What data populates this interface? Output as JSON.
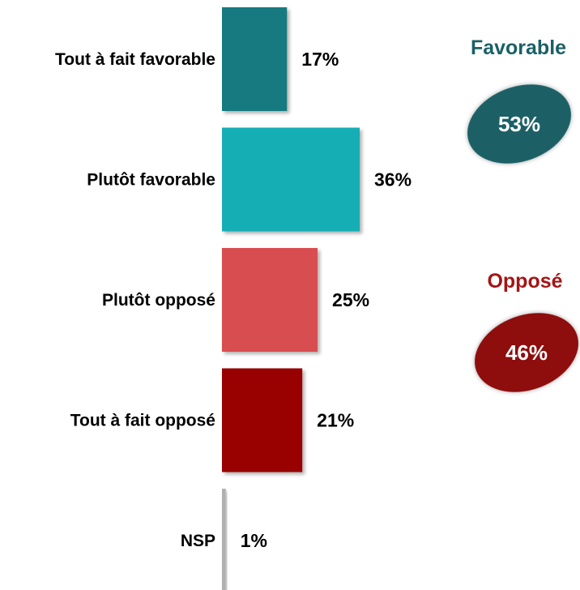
{
  "chart_data": {
    "type": "bar",
    "orientation": "horizontal",
    "categories": [
      "Tout à fait favorable",
      "Plutôt favorable",
      "Plutôt opposé",
      "Tout à fait opposé",
      "NSP"
    ],
    "values": [
      17,
      36,
      25,
      21,
      1
    ],
    "value_labels": [
      "17%",
      "36%",
      "25%",
      "21%",
      "1%"
    ],
    "colors": [
      "#137A80",
      "#12AEB5",
      "#D84E4F",
      "#990000",
      "#B0B0B0"
    ],
    "title": "",
    "xlabel": "",
    "ylabel": "",
    "xlim": [
      0,
      40
    ],
    "grid": false,
    "legend": "none",
    "summary": [
      {
        "label": "Favorable",
        "value": "53%",
        "color": "#1A6066",
        "title_color": "#1A6066"
      },
      {
        "label": "Opposé",
        "value": "46%",
        "color": "#8E0C0C",
        "title_color": "#A31515"
      }
    ]
  }
}
